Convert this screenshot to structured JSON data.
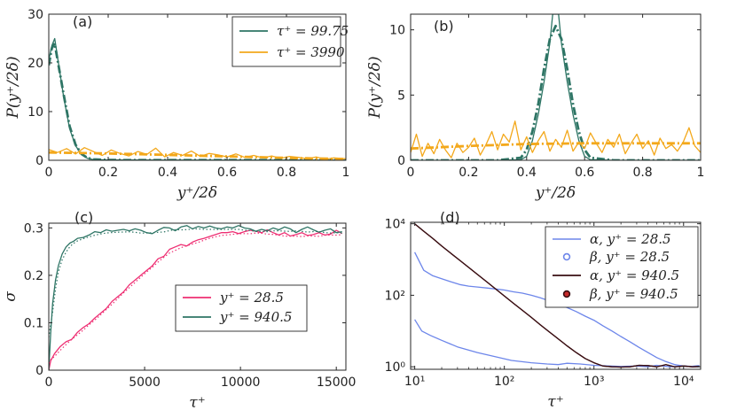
{
  "colors": {
    "teal": "#2e7565",
    "orange": "#f3a81b",
    "pink": "#ee2f73",
    "blue": "#6d86ea",
    "maroon": "#3a0e12",
    "axis": "#262626"
  },
  "chart_data": [
    {
      "type": "line",
      "panel": "(a)",
      "xlabel": "y⁺/2δ",
      "ylabel": "P(y⁺/2δ)",
      "xlim": [
        0,
        1
      ],
      "ylim": [
        0,
        30
      ],
      "xticks": [
        "0",
        "0.2",
        "0.4",
        "0.6",
        "0.8",
        "1"
      ],
      "yticks": [
        "0",
        "10",
        "20",
        "30"
      ],
      "legend_position": "top-right",
      "series": [
        {
          "name": "τ⁺ = 99.75",
          "color": "#2e7565",
          "style": "solid",
          "x": [
            0,
            0.01,
            0.02,
            0.03,
            0.05,
            0.07,
            0.09,
            0.11,
            0.13,
            0.15,
            0.2,
            0.4,
            0.6,
            0.8,
            1.0
          ],
          "y": [
            20.5,
            23.5,
            25.0,
            21.0,
            13.0,
            6.5,
            3.0,
            1.2,
            0.4,
            0.15,
            0.05,
            0.03,
            0.03,
            0.03,
            0.03
          ]
        },
        {
          "name": "τ⁺ = 99.75 (fit)",
          "color": "#2e7565",
          "style": "dashdot",
          "x": [
            0,
            0.01,
            0.02,
            0.03,
            0.05,
            0.07,
            0.09,
            0.11,
            0.13,
            0.15,
            0.2,
            1.0
          ],
          "y": [
            19.5,
            23.0,
            24.0,
            20.5,
            13.5,
            7.0,
            3.2,
            1.3,
            0.5,
            0.2,
            0.05,
            0.02
          ]
        },
        {
          "name": "τ⁺ = 3990",
          "color": "#f3a81b",
          "style": "solid",
          "x": [
            0,
            0.03,
            0.06,
            0.09,
            0.12,
            0.15,
            0.18,
            0.21,
            0.24,
            0.27,
            0.3,
            0.33,
            0.36,
            0.39,
            0.42,
            0.45,
            0.48,
            0.51,
            0.54,
            0.57,
            0.6,
            0.63,
            0.66,
            0.69,
            0.72,
            0.75,
            0.78,
            0.81,
            0.84,
            0.87,
            0.9,
            0.93,
            0.96,
            1.0
          ],
          "y": [
            2.2,
            1.6,
            2.4,
            1.3,
            2.6,
            1.8,
            1.0,
            2.1,
            1.4,
            0.9,
            1.8,
            1.2,
            2.5,
            0.7,
            1.6,
            1.0,
            1.9,
            0.8,
            1.4,
            1.1,
            0.7,
            1.3,
            0.6,
            1.0,
            0.5,
            0.9,
            0.4,
            0.8,
            0.6,
            0.3,
            0.7,
            0.2,
            0.5,
            0.3
          ]
        },
        {
          "name": "τ⁺ = 3990 (fit)",
          "color": "#f3a81b",
          "style": "dashdot",
          "x": [
            0,
            0.2,
            0.4,
            0.6,
            0.8,
            1.0
          ],
          "y": [
            1.6,
            1.4,
            1.1,
            0.8,
            0.5,
            0.25
          ]
        }
      ],
      "legend": [
        "τ⁺ = 99.75",
        "τ⁺ = 3990"
      ]
    },
    {
      "type": "line",
      "panel": "(b)",
      "xlabel": "y⁺/2δ",
      "ylabel": "P(y⁺/2δ)",
      "xlim": [
        0,
        1
      ],
      "ylim": [
        0,
        11.2
      ],
      "xticks": [
        "0",
        "0.2",
        "0.4",
        "0.6",
        "0.8",
        "1"
      ],
      "yticks": [
        "0",
        "5",
        "10"
      ],
      "series": [
        {
          "name": "teal",
          "color": "#2e7565",
          "style": "solid",
          "x": [
            0,
            0.1,
            0.2,
            0.3,
            0.38,
            0.4,
            0.42,
            0.44,
            0.46,
            0.48,
            0.49,
            0.5,
            0.51,
            0.52,
            0.54,
            0.56,
            0.58,
            0.6,
            0.62,
            0.7,
            0.8,
            0.9,
            1.0
          ],
          "y": [
            0,
            0,
            0,
            0,
            0.05,
            0.3,
            1.5,
            3.5,
            6.0,
            9.0,
            11.2,
            11.2,
            11.2,
            9.0,
            6.0,
            3.5,
            1.5,
            0.3,
            0.05,
            0,
            0,
            0,
            0
          ]
        },
        {
          "name": "teal fit",
          "color": "#2e7565",
          "style": "dashdot",
          "x": [
            0,
            0.3,
            0.38,
            0.4,
            0.42,
            0.44,
            0.46,
            0.48,
            0.5,
            0.52,
            0.54,
            0.56,
            0.58,
            0.6,
            0.62,
            0.7,
            1.0
          ],
          "y": [
            0,
            0,
            0.2,
            0.8,
            2.2,
            4.3,
            7.0,
            9.3,
            10.3,
            9.3,
            7.0,
            4.3,
            2.2,
            0.8,
            0.2,
            0,
            0
          ]
        },
        {
          "name": "orange",
          "color": "#f3a81b",
          "style": "solid",
          "x": [
            0,
            0.02,
            0.04,
            0.06,
            0.08,
            0.1,
            0.12,
            0.14,
            0.16,
            0.18,
            0.2,
            0.22,
            0.24,
            0.26,
            0.28,
            0.3,
            0.32,
            0.34,
            0.36,
            0.38,
            0.4,
            0.42,
            0.44,
            0.46,
            0.48,
            0.5,
            0.52,
            0.54,
            0.56,
            0.58,
            0.6,
            0.62,
            0.64,
            0.66,
            0.68,
            0.7,
            0.72,
            0.74,
            0.76,
            0.78,
            0.8,
            0.82,
            0.84,
            0.86,
            0.88,
            0.9,
            0.92,
            0.94,
            0.96,
            0.98,
            1.0
          ],
          "y": [
            0.6,
            2.0,
            0.3,
            1.3,
            0.5,
            1.6,
            0.8,
            0.2,
            1.3,
            0.6,
            1.0,
            1.7,
            0.4,
            1.2,
            2.2,
            0.8,
            2.0,
            1.4,
            3.0,
            0.8,
            1.8,
            0.6,
            1.5,
            2.2,
            0.7,
            1.6,
            1.0,
            2.3,
            0.7,
            1.4,
            0.9,
            2.1,
            1.3,
            0.6,
            1.6,
            1.0,
            2.0,
            0.5,
            1.3,
            2.0,
            0.9,
            1.5,
            0.4,
            1.7,
            0.9,
            1.2,
            0.7,
            1.4,
            2.5,
            1.1,
            0.6
          ]
        },
        {
          "name": "orange fit",
          "color": "#f3a81b",
          "style": "dashdot",
          "x": [
            0,
            0.2,
            0.4,
            0.6,
            0.8,
            1.0
          ],
          "y": [
            0.9,
            1.1,
            1.25,
            1.3,
            1.3,
            1.3
          ]
        }
      ]
    },
    {
      "type": "line",
      "panel": "(c)",
      "xlabel": "τ⁺",
      "ylabel": "σ",
      "xlim": [
        0,
        15500
      ],
      "ylim": [
        0,
        0.31
      ],
      "xticks": [
        "0",
        "5000",
        "10000",
        "15000"
      ],
      "yticks": [
        "0",
        "0.1",
        "0.2",
        "0.3"
      ],
      "legend_position": "bottom-right",
      "series": [
        {
          "name": "y⁺ = 28.5",
          "color": "#ee2f73",
          "x": [
            0,
            100,
            300,
            600,
            900,
            1200,
            1500,
            1800,
            2100,
            2400,
            2700,
            3000,
            3300,
            3600,
            3900,
            4200,
            4500,
            4800,
            5100,
            5400,
            5700,
            6000,
            6300,
            6600,
            6900,
            7200,
            7500,
            7800,
            8100,
            8400,
            8700,
            9000,
            9300,
            9600,
            9900,
            10200,
            10500,
            10800,
            11100,
            11400,
            11700,
            12000,
            12300,
            12600,
            12900,
            13200,
            13500,
            13800,
            14100,
            14400,
            14700,
            15000,
            15300
          ],
          "y": [
            0,
            0.02,
            0.035,
            0.05,
            0.06,
            0.065,
            0.08,
            0.09,
            0.098,
            0.11,
            0.12,
            0.13,
            0.145,
            0.155,
            0.165,
            0.18,
            0.19,
            0.2,
            0.21,
            0.22,
            0.235,
            0.24,
            0.255,
            0.26,
            0.265,
            0.262,
            0.27,
            0.275,
            0.278,
            0.282,
            0.286,
            0.29,
            0.29,
            0.292,
            0.288,
            0.292,
            0.295,
            0.293,
            0.29,
            0.296,
            0.29,
            0.285,
            0.29,
            0.283,
            0.286,
            0.29,
            0.284,
            0.286,
            0.29,
            0.285,
            0.287,
            0.295,
            0.288
          ]
        },
        {
          "name": "y⁺ = 940.5",
          "color": "#2e7565",
          "x": [
            0,
            100,
            200,
            350,
            500,
            700,
            900,
            1100,
            1300,
            1500,
            1800,
            2100,
            2400,
            2700,
            3000,
            3300,
            3600,
            3900,
            4200,
            4500,
            4800,
            5100,
            5400,
            5700,
            6000,
            6300,
            6600,
            6900,
            7200,
            7500,
            7800,
            8100,
            8400,
            8700,
            9000,
            9300,
            9600,
            9900,
            10200,
            10500,
            10800,
            11100,
            11400,
            11700,
            12000,
            12300,
            12600,
            12900,
            13200,
            13500,
            13800,
            14100,
            14400,
            14700,
            15000,
            15300
          ],
          "y": [
            0,
            0.08,
            0.14,
            0.19,
            0.22,
            0.245,
            0.26,
            0.268,
            0.272,
            0.278,
            0.28,
            0.285,
            0.292,
            0.29,
            0.296,
            0.293,
            0.295,
            0.297,
            0.294,
            0.298,
            0.295,
            0.29,
            0.288,
            0.295,
            0.301,
            0.3,
            0.294,
            0.302,
            0.305,
            0.298,
            0.303,
            0.3,
            0.304,
            0.3,
            0.298,
            0.302,
            0.3,
            0.305,
            0.3,
            0.298,
            0.293,
            0.297,
            0.294,
            0.3,
            0.296,
            0.302,
            0.298,
            0.29,
            0.297,
            0.302,
            0.296,
            0.291,
            0.295,
            0.298,
            0.29,
            0.292
          ]
        }
      ],
      "legend": [
        "y⁺ = 28.5",
        "y⁺ = 940.5"
      ]
    },
    {
      "type": "line",
      "panel": "(d)",
      "xlabel": "τ⁺",
      "xscale": "log",
      "yscale": "log",
      "xlim": [
        9,
        15500
      ],
      "ylim": [
        0.85,
        11000
      ],
      "xticks": [
        "10¹",
        "10²",
        "10³",
        "10⁴"
      ],
      "yticks": [
        "10⁰",
        "10²",
        "10⁴"
      ],
      "legend_position": "top-right",
      "series": [
        {
          "name": "α, y⁺ = 28.5",
          "color": "#6d86ea",
          "style": "line",
          "x": [
            10,
            12,
            15,
            20,
            30,
            50,
            80,
            120,
            200,
            300,
            400,
            500,
            700,
            1000,
            1500,
            2000,
            3000,
            4000,
            5000,
            7000,
            10000,
            12000,
            15000
          ],
          "y": [
            21,
            10,
            7.5,
            5.5,
            3.6,
            2.5,
            1.9,
            1.5,
            1.3,
            1.2,
            1.15,
            1.25,
            1.2,
            1.1,
            1.05,
            1.02,
            1.05,
            1.0,
            1.1,
            1.0,
            1.05,
            1.02,
            1.08
          ]
        },
        {
          "name": "β, y⁺ = 28.5",
          "color": "#6d86ea",
          "style": "open-circles",
          "x": [
            10,
            12.6,
            15.9,
            20,
            25.2,
            31.7,
            40,
            50.3,
            63.4,
            79.8,
            100,
            126,
            159,
            200,
            252,
            317,
            400,
            503,
            634,
            798,
            1000,
            1260,
            1590,
            2000,
            2520,
            3170,
            4000,
            5030,
            6340,
            7980,
            10000,
            12600,
            15000
          ],
          "y": [
            1600,
            500,
            350,
            290,
            240,
            200,
            180,
            170,
            160,
            150,
            140,
            125,
            115,
            100,
            85,
            70,
            57,
            45,
            35,
            26,
            20,
            14,
            10,
            7,
            5,
            3.5,
            2.5,
            1.8,
            1.4,
            1.15,
            1.05,
            1.02,
            1.0
          ]
        },
        {
          "name": "α, y⁺ = 940.5",
          "color": "#3a0e12",
          "style": "line",
          "x": [
            10,
            12.6,
            15.9,
            20,
            25.2,
            31.7,
            40,
            50.3,
            63.4,
            79.8,
            100,
            126,
            159,
            200,
            252,
            317,
            400,
            503,
            634,
            798,
            1000,
            1260,
            1590,
            2000,
            2520,
            3170,
            4000,
            5030,
            6340,
            7980,
            10000,
            12600,
            15000
          ],
          "y": [
            10000,
            6200,
            3900,
            2400,
            1500,
            950,
            600,
            380,
            240,
            150,
            95,
            60,
            38,
            24,
            15,
            9.5,
            6.0,
            3.8,
            2.5,
            1.7,
            1.3,
            1.05,
            1.0,
            0.98,
            1.0,
            1.1,
            1.08,
            1.0,
            1.15,
            1.0,
            1.05,
            1.0,
            1.02
          ]
        },
        {
          "name": "β, y⁺ = 940.5",
          "color": "#3a0e12",
          "style": "open-circles-red",
          "x": [
            10,
            12.6,
            15.9,
            20,
            25.2,
            31.7,
            40,
            50.3,
            63.4,
            79.8,
            100,
            126,
            159,
            200,
            252,
            317,
            400,
            503,
            634,
            798,
            1000,
            1260,
            1590,
            2000,
            2520,
            3170,
            4000,
            5030,
            6340,
            7980,
            10000,
            12600,
            15000
          ],
          "y": [
            10000,
            6200,
            3900,
            2400,
            1500,
            950,
            600,
            380,
            240,
            150,
            95,
            60,
            38,
            24,
            15,
            9.5,
            6.0,
            3.8,
            2.5,
            1.7,
            1.3,
            1.05,
            1.0,
            0.98,
            1.0,
            1.1,
            1.08,
            1.0,
            1.15,
            1.0,
            1.05,
            1.0,
            1.02
          ]
        }
      ],
      "legend": [
        "α, y⁺ = 28.5",
        "β, y⁺ = 28.5",
        "α, y⁺ = 940.5",
        "β, y⁺ = 940.5"
      ]
    }
  ]
}
